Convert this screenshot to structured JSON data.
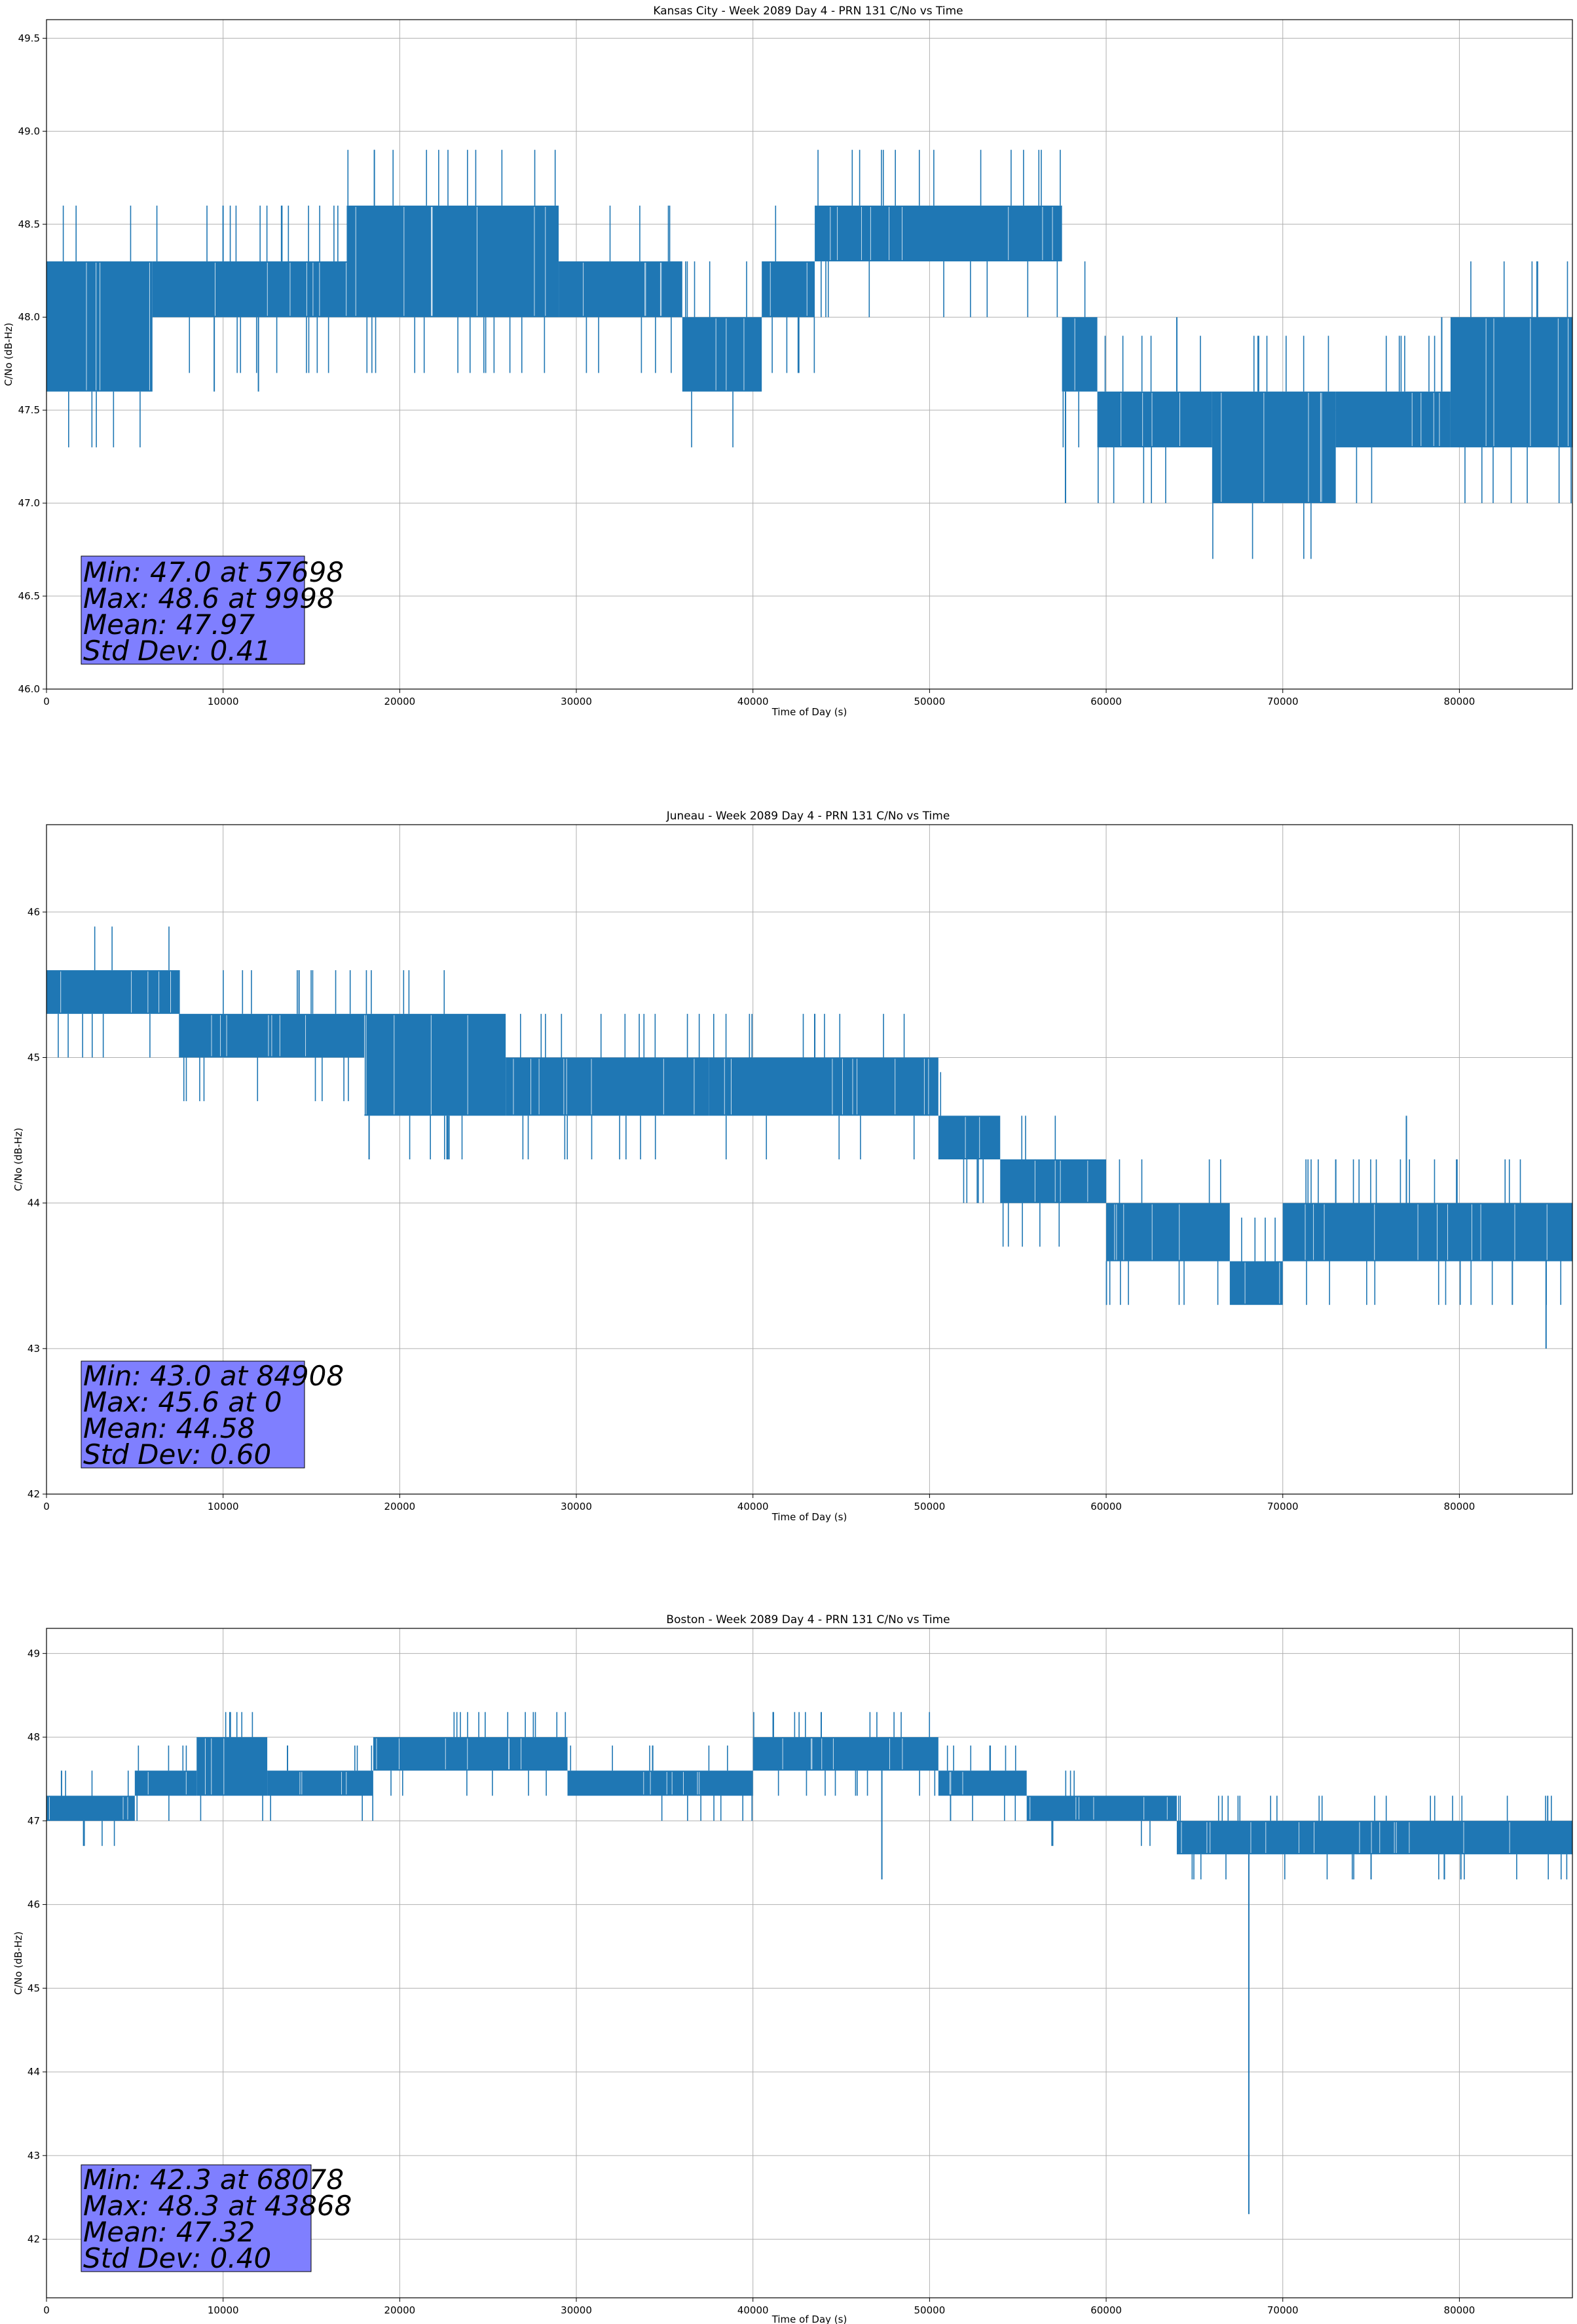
{
  "chart_data": [
    {
      "type": "line",
      "title": "Kansas City - Week 2089 Day 4 - PRN 131 C/No vs Time",
      "xlabel": "Time of Day (s)",
      "ylabel": "C/No (dB-Hz)",
      "xlim": [
        0,
        86400
      ],
      "ylim": [
        46.0,
        49.6
      ],
      "xticks": [
        0,
        10000,
        20000,
        30000,
        40000,
        50000,
        60000,
        70000,
        80000
      ],
      "yticks": [
        46.0,
        46.5,
        47.0,
        47.5,
        48.0,
        48.5,
        49.0,
        49.5
      ],
      "ytick_labels": [
        "46.0",
        "46.5",
        "47.0",
        "47.5",
        "48.0",
        "48.5",
        "49.0",
        "49.5"
      ],
      "grid": true,
      "line_color": "#1f77b4",
      "bands": [
        {
          "x": [
            0,
            6000
          ],
          "y": [
            47.6,
            48.3
          ]
        },
        {
          "x": [
            6000,
            17000
          ],
          "y": [
            48.0,
            48.3
          ]
        },
        {
          "x": [
            17000,
            29000
          ],
          "y": [
            48.0,
            48.6
          ]
        },
        {
          "x": [
            29000,
            36000
          ],
          "y": [
            48.0,
            48.3
          ]
        },
        {
          "x": [
            36000,
            40500
          ],
          "y": [
            47.6,
            48.0
          ]
        },
        {
          "x": [
            40500,
            43500
          ],
          "y": [
            48.0,
            48.3
          ]
        },
        {
          "x": [
            43500,
            57500
          ],
          "y": [
            48.3,
            48.6
          ]
        },
        {
          "x": [
            57500,
            59500
          ],
          "y": [
            47.6,
            48.0
          ]
        },
        {
          "x": [
            59500,
            66000
          ],
          "y": [
            47.3,
            47.6
          ]
        },
        {
          "x": [
            66000,
            73000
          ],
          "y": [
            47.0,
            47.6
          ]
        },
        {
          "x": [
            73000,
            79500
          ],
          "y": [
            47.3,
            47.6
          ]
        },
        {
          "x": [
            79500,
            86400
          ],
          "y": [
            47.3,
            48.0
          ]
        }
      ],
      "spikes": [
        {
          "x": 9498,
          "y": 47.6
        },
        {
          "x": 9998,
          "y": 48.6
        },
        {
          "x": 12000,
          "y": 47.6
        },
        {
          "x": 57698,
          "y": 47.0
        },
        {
          "x": 64000,
          "y": 48.0
        },
        {
          "x": 79000,
          "y": 48.0
        }
      ],
      "stats": {
        "min": "Min: 47.0 at 57698",
        "max": "Max: 48.6 at 9998",
        "mean": "Mean: 47.97",
        "std": "Std Dev: 0.41"
      }
    },
    {
      "type": "line",
      "title": "Juneau - Week 2089 Day 4 - PRN 131 C/No vs Time",
      "xlabel": "Time of Day (s)",
      "ylabel": "C/No (dB-Hz)",
      "xlim": [
        0,
        86400
      ],
      "ylim": [
        42.0,
        46.6
      ],
      "xticks": [
        0,
        10000,
        20000,
        30000,
        40000,
        50000,
        60000,
        70000,
        80000
      ],
      "yticks": [
        42,
        43,
        44,
        45,
        46
      ],
      "ytick_labels": [
        "42",
        "43",
        "44",
        "45",
        "46"
      ],
      "grid": true,
      "line_color": "#1f77b4",
      "bands": [
        {
          "x": [
            0,
            7500
          ],
          "y": [
            45.3,
            45.6
          ]
        },
        {
          "x": [
            7500,
            18000
          ],
          "y": [
            45.0,
            45.3
          ]
        },
        {
          "x": [
            18000,
            26000
          ],
          "y": [
            44.6,
            45.3
          ]
        },
        {
          "x": [
            26000,
            37500
          ],
          "y": [
            44.6,
            45.0
          ]
        },
        {
          "x": [
            37500,
            50500
          ],
          "y": [
            44.6,
            45.0
          ]
        },
        {
          "x": [
            50500,
            54000
          ],
          "y": [
            44.3,
            44.6
          ]
        },
        {
          "x": [
            54000,
            60000
          ],
          "y": [
            44.0,
            44.3
          ]
        },
        {
          "x": [
            60000,
            67000
          ],
          "y": [
            43.6,
            44.0
          ]
        },
        {
          "x": [
            67000,
            70000
          ],
          "y": [
            43.3,
            43.6
          ]
        },
        {
          "x": [
            70000,
            86400
          ],
          "y": [
            43.6,
            44.0
          ]
        }
      ],
      "spikes": [
        {
          "x": 14300,
          "y": 45.6
        },
        {
          "x": 43500,
          "y": 45.3
        },
        {
          "x": 77000,
          "y": 44.6
        },
        {
          "x": 84908,
          "y": 43.0
        },
        {
          "x": 73000,
          "y": 44.3
        },
        {
          "x": 83000,
          "y": 43.3
        }
      ],
      "stats": {
        "min": "Min: 43.0 at 84908",
        "max": "Max: 45.6 at 0",
        "mean": "Mean: 44.58",
        "std": "Std Dev: 0.60"
      }
    },
    {
      "type": "line",
      "title": "Boston - Week 2089 Day 4 - PRN 131 C/No vs Time",
      "xlabel": "Time of Day (s)",
      "ylabel": "C/No (dB-Hz)",
      "xlim": [
        0,
        86400
      ],
      "ylim": [
        41.3,
        49.3
      ],
      "xticks": [
        0,
        10000,
        20000,
        30000,
        40000,
        50000,
        60000,
        70000,
        80000
      ],
      "yticks": [
        42,
        43,
        44,
        45,
        46,
        47,
        48,
        49
      ],
      "ytick_labels": [
        "42",
        "43",
        "44",
        "45",
        "46",
        "47",
        "48",
        "49"
      ],
      "grid": true,
      "line_color": "#1f77b4",
      "bands": [
        {
          "x": [
            0,
            5000
          ],
          "y": [
            47.0,
            47.3
          ]
        },
        {
          "x": [
            5000,
            8500
          ],
          "y": [
            47.3,
            47.6
          ]
        },
        {
          "x": [
            8500,
            12500
          ],
          "y": [
            47.3,
            48.0
          ]
        },
        {
          "x": [
            12500,
            18500
          ],
          "y": [
            47.3,
            47.6
          ]
        },
        {
          "x": [
            18500,
            29500
          ],
          "y": [
            47.6,
            48.0
          ]
        },
        {
          "x": [
            29500,
            40000
          ],
          "y": [
            47.3,
            47.6
          ]
        },
        {
          "x": [
            40000,
            50500
          ],
          "y": [
            47.6,
            48.0
          ]
        },
        {
          "x": [
            50500,
            55500
          ],
          "y": [
            47.3,
            47.6
          ]
        },
        {
          "x": [
            55500,
            64000
          ],
          "y": [
            47.0,
            47.3
          ]
        },
        {
          "x": [
            64000,
            86400
          ],
          "y": [
            46.6,
            47.0
          ]
        }
      ],
      "spikes": [
        {
          "x": 43868,
          "y": 48.3
        },
        {
          "x": 47300,
          "y": 46.3
        },
        {
          "x": 68078,
          "y": 42.3
        },
        {
          "x": 850,
          "y": 47.6
        },
        {
          "x": 85000,
          "y": 47.3
        },
        {
          "x": 75000,
          "y": 46.3
        }
      ],
      "stats": {
        "min": "Min: 42.3 at 68078",
        "max": "Max: 48.3 at 43868",
        "mean": "Mean: 47.32",
        "std": "Std Dev: 0.40"
      }
    }
  ]
}
